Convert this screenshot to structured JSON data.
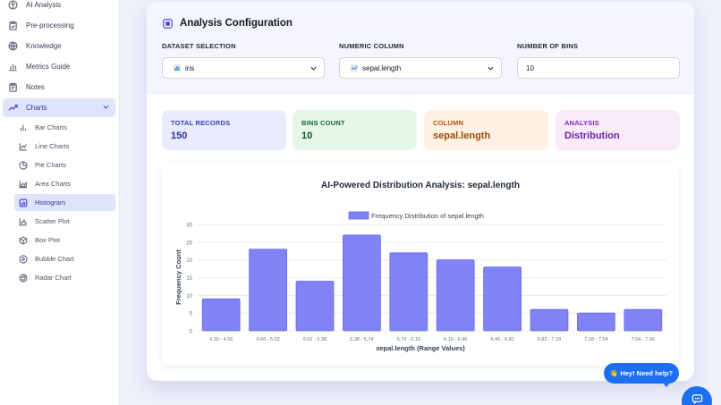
{
  "sidebar": {
    "items": [
      {
        "label": "AI Analysis",
        "icon": "brain-icon"
      },
      {
        "label": "Pre-processing",
        "icon": "clipboard-icon"
      },
      {
        "label": "Knowledge",
        "icon": "globe-icon"
      },
      {
        "label": "Metrics Guide",
        "icon": "bar-chart-icon"
      },
      {
        "label": "Notes",
        "icon": "clipboard-icon"
      },
      {
        "label": "Charts",
        "icon": "trend-icon"
      }
    ],
    "sub_items": [
      {
        "label": "Bar Charts",
        "icon": "bar-chart-icon"
      },
      {
        "label": "Line Charts",
        "icon": "line-chart-icon"
      },
      {
        "label": "Pie Charts",
        "icon": "pie-chart-icon"
      },
      {
        "label": "Area Charts",
        "icon": "area-chart-icon"
      },
      {
        "label": "Histogram",
        "icon": "histogram-icon"
      },
      {
        "label": "Scatter Plot",
        "icon": "scatter-icon"
      },
      {
        "label": "Box Plot",
        "icon": "box-icon"
      },
      {
        "label": "Bubble Chart",
        "icon": "bubble-icon"
      },
      {
        "label": "Radar Chart",
        "icon": "radar-icon"
      }
    ],
    "active_item": "Charts",
    "active_sub_item": "Histogram"
  },
  "config": {
    "title": "Analysis Configuration",
    "dataset_label": "DATASET SELECTION",
    "dataset_value": "iris",
    "column_label": "NUMERIC COLUMN",
    "column_value": "sepal.length",
    "bins_label": "NUMBER OF BINS",
    "bins_value": "10"
  },
  "stats": [
    {
      "label": "TOTAL RECORDS",
      "value": "150",
      "color": "#3b3fb8",
      "bg": "#e8ebfc"
    },
    {
      "label": "BINS COUNT",
      "value": "10",
      "color": "#166534",
      "bg": "#e6f7ea"
    },
    {
      "label": "COLUMN",
      "value": "sepal.length",
      "color": "#9a4a0a",
      "bg": "#fdf1e3"
    },
    {
      "label": "ANALYSIS",
      "value": "Distribution",
      "color": "#6b21a8",
      "bg": "#f9ecf8"
    }
  ],
  "chart_data": {
    "type": "bar",
    "title": "AI-Powered Distribution Analysis: sepal.length",
    "legend": "Frequency Distribution of sepal.length",
    "legend_position": "top",
    "xlabel": "sepal.length (Range Values)",
    "ylabel": "Frequency Count",
    "categories": [
      "4.30 - 4.66",
      "4.66 - 5.02",
      "5.02 - 5.38",
      "5.38 - 5.74",
      "5.74 - 6.10",
      "6.10 - 6.46",
      "6.46 - 6.82",
      "6.82 - 7.18",
      "7.18 - 7.54",
      "7.54 - 7.90"
    ],
    "values": [
      9,
      23,
      14,
      27,
      22,
      20,
      18,
      6,
      5,
      6
    ],
    "ylim": [
      0,
      30
    ],
    "yticks": [
      0,
      5,
      10,
      15,
      20,
      25,
      30
    ],
    "grid": true,
    "bar_color": "#8183f4",
    "bar_border": "#6366f1"
  },
  "help": {
    "label": "👋 Hey! Need help?"
  }
}
